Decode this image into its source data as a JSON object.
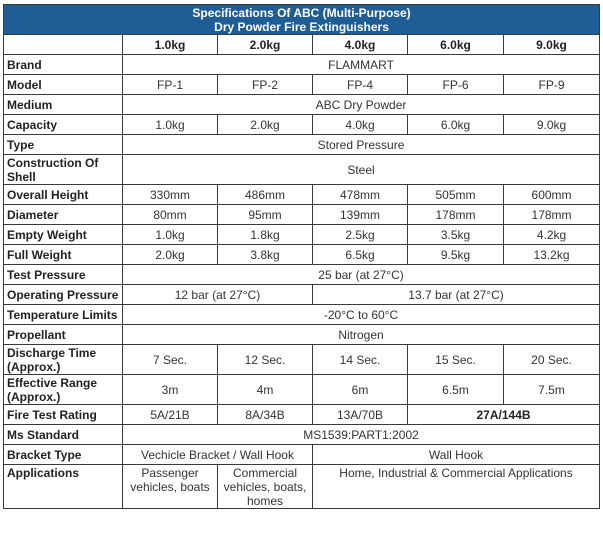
{
  "title_line1": "Specifications Of ABC (Multi-Purpose)",
  "title_line2": "Dry Powder Fire Extinguishers",
  "columns": [
    "1.0kg",
    "2.0kg",
    "4.0kg",
    "6.0kg",
    "9.0kg"
  ],
  "rows": {
    "brand": {
      "label": "Brand",
      "value": "FLAMMART"
    },
    "model": {
      "label": "Model",
      "values": [
        "FP-1",
        "FP-2",
        "FP-4",
        "FP-6",
        "FP-9"
      ]
    },
    "medium": {
      "label": "Medium",
      "value": "ABC Dry Powder"
    },
    "capacity": {
      "label": "Capacity",
      "values": [
        "1.0kg",
        "2.0kg",
        "4.0kg",
        "6.0kg",
        "9.0kg"
      ]
    },
    "type": {
      "label": "Type",
      "value": "Stored Pressure"
    },
    "construction": {
      "label": "Construction Of Shell",
      "value": "Steel"
    },
    "overall_height": {
      "label": "Overall Height",
      "values": [
        "330mm",
        "486mm",
        "478mm",
        "505mm",
        "600mm"
      ]
    },
    "diameter": {
      "label": "Diameter",
      "values": [
        "80mm",
        "95mm",
        "139mm",
        "178mm",
        "178mm"
      ]
    },
    "empty_weight": {
      "label": "Empty Weight",
      "values": [
        "1.0kg",
        "1.8kg",
        "2.5kg",
        "3.5kg",
        "4.2kg"
      ]
    },
    "full_weight": {
      "label": "Full Weight",
      "values": [
        "2.0kg",
        "3.8kg",
        "6.5kg",
        "9.5kg",
        "13.2kg"
      ]
    },
    "test_pressure": {
      "label": "Test Pressure",
      "value": "25 bar (at 27°C)"
    },
    "operating_pressure": {
      "label": "Operating Pressure",
      "value_a": "12 bar (at 27°C)",
      "value_b": "13.7 bar (at 27°C)"
    },
    "temperature_limits": {
      "label": "Temperature Limits",
      "value": "-20°C to 60°C"
    },
    "propellant": {
      "label": "Propellant",
      "value": "Nitrogen"
    },
    "discharge_time": {
      "label": "Discharge Time (Approx.)",
      "values": [
        "7 Sec.",
        "12 Sec.",
        "14 Sec.",
        "15 Sec.",
        "20 Sec."
      ]
    },
    "effective_range": {
      "label": "Effective Range (Approx.)",
      "values": [
        "3m",
        "4m",
        "6m",
        "6.5m",
        "7.5m"
      ]
    },
    "fire_test_rating": {
      "label": "Fire Test Rating",
      "values": [
        "5A/21B",
        "8A/34B",
        "13A/70B",
        "27A/144B"
      ]
    },
    "ms_standard": {
      "label": "Ms Standard",
      "value": "MS1539:PART1:2002"
    },
    "bracket_type": {
      "label": "Bracket Type",
      "value_a": "Vechicle Bracket / Wall Hook",
      "value_b": "Wall Hook"
    },
    "applications": {
      "label": "Applications",
      "values": [
        "Passenger vehicles, boats",
        "Commercial vehicles, boats, homes",
        "Home, Industrial & Commercial Applications"
      ]
    }
  }
}
